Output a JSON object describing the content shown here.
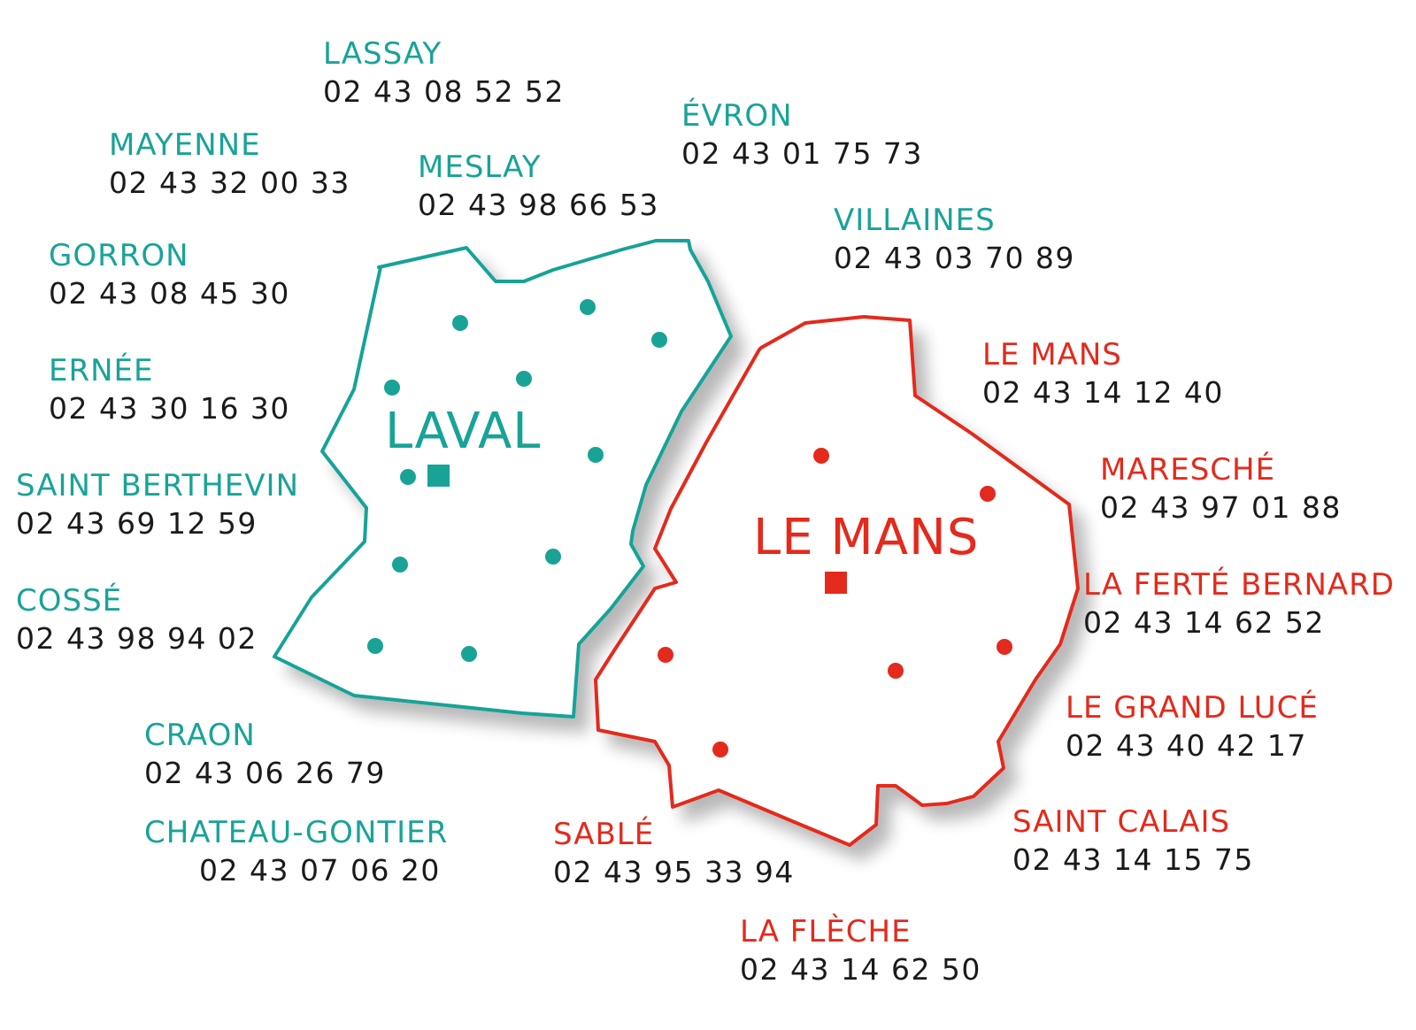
{
  "colors": {
    "mayenne": "#19a397",
    "sarthe": "#e32a1c",
    "phone": "#1a1a1a"
  },
  "regions": {
    "mayenne": {
      "city": "LAVAL"
    },
    "sarthe": {
      "city": "LE MANS"
    }
  },
  "offices": {
    "lassay": {
      "name": "LASSAY",
      "phone": "02 43 08 52 52"
    },
    "mayenne": {
      "name": "MAYENNE",
      "phone": "02 43 32 00 33"
    },
    "meslay": {
      "name": "MESLAY",
      "phone": "02 43 98 66 53"
    },
    "evron": {
      "name": "ÉVRON",
      "phone": "02 43 01 75 73"
    },
    "villaines": {
      "name": "VILLAINES",
      "phone": "02 43 03 70 89"
    },
    "gorron": {
      "name": "GORRON",
      "phone": "02 43 08 45 30"
    },
    "ernee": {
      "name": "ERNÉE",
      "phone": "02 43 30 16 30"
    },
    "saint_berthevin": {
      "name": "SAINT BERTHEVIN",
      "phone": "02 43 69 12 59"
    },
    "cosse": {
      "name": "COSSÉ",
      "phone": "02 43 98 94 02"
    },
    "craon": {
      "name": "CRAON",
      "phone": "02 43 06 26 79"
    },
    "chateau_gontier": {
      "name": "CHATEAU-GONTIER",
      "phone": "02 43 07 06 20"
    },
    "le_mans": {
      "name": "LE MANS",
      "phone": "02 43 14 12 40"
    },
    "maresche": {
      "name": "MARESCHÉ",
      "phone": "02 43 97 01 88"
    },
    "la_ferte_bernard": {
      "name": "LA FERTÉ BERNARD",
      "phone": "02 43 14 62 52"
    },
    "le_grand_luce": {
      "name": "LE GRAND LUCÉ",
      "phone": "02 43 40 42 17"
    },
    "saint_calais": {
      "name": "SAINT CALAIS",
      "phone": "02 43 14 15 75"
    },
    "sable": {
      "name": "SABLÉ",
      "phone": "02 43 95 33 94"
    },
    "la_fleche": {
      "name": "LA FLÈCHE",
      "phone": "02 43 14 62 50"
    }
  }
}
